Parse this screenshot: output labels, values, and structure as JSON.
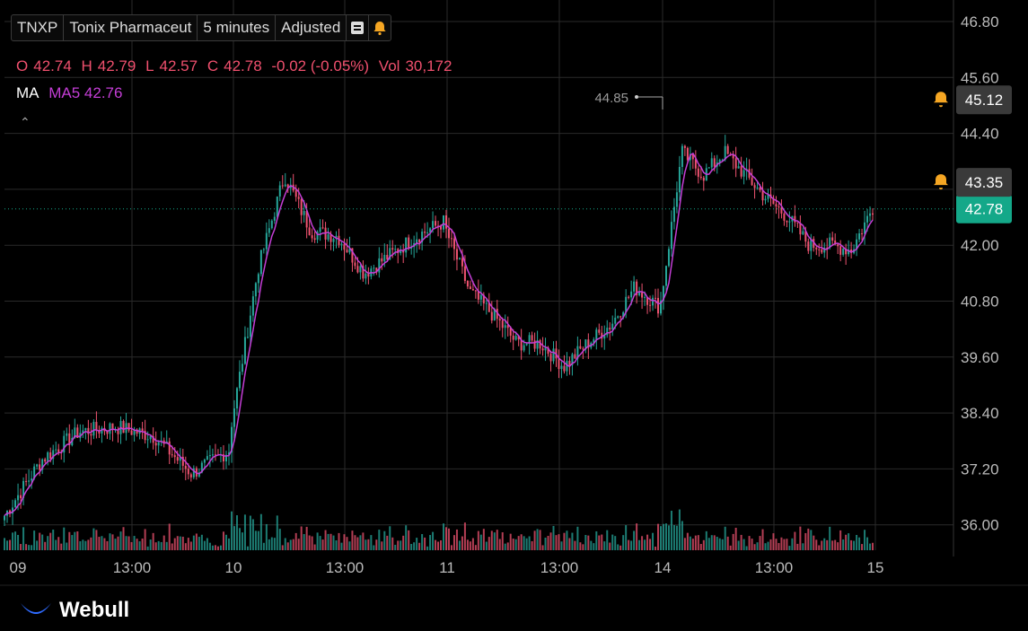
{
  "toolbar": {
    "symbol": "TNXP",
    "name": "Tonix Pharmaceut",
    "interval": "5 minutes",
    "adjust": "Adjusted",
    "doc_icon": "document-icon",
    "bell_icon": "bell-icon"
  },
  "ohlc": {
    "o_label": "O",
    "o": "42.74",
    "h_label": "H",
    "h": "42.79",
    "l_label": "L",
    "l": "42.57",
    "c_label": "C",
    "c": "42.78",
    "change": "-0.02 (-0.05%)",
    "vol_label": "Vol",
    "vol": "30,172"
  },
  "ma": {
    "title": "MA",
    "label": "MA5 42.76",
    "color": "#c43ed6"
  },
  "collapse_icon": "chevron-up-icon",
  "brand": {
    "name": "Webull"
  },
  "colors": {
    "up": "#26a69a",
    "down": "#ef5370",
    "ma": "#c43ed6",
    "alert": "#f5a623",
    "current": "#14a889",
    "grid": "#2a2a2a"
  },
  "chart_data": {
    "type": "candlestick",
    "symbol": "TNXP",
    "interval": "5 minutes",
    "y_ticks": [
      "46.80",
      "45.60",
      "44.40",
      "43.20",
      "42.00",
      "40.80",
      "39.60",
      "38.40",
      "37.20",
      "36.00"
    ],
    "ylim": [
      35.7,
      47.0
    ],
    "x_ticks": [
      "09",
      "13:00",
      "10",
      "13:00",
      "11",
      "13:00",
      "14",
      "13:00",
      "15"
    ],
    "current_price": "42.78",
    "alert_levels": [
      "45.12",
      "43.35"
    ],
    "high_annotation": "44.85",
    "ma5_last": "42.76",
    "series_keypoints": [
      {
        "day": "09",
        "close_points": [
          36.2,
          37.4,
          38.0,
          38.1,
          37.9,
          37.1,
          37.6
        ]
      },
      {
        "day": "10",
        "close_points": [
          38.2,
          41.5,
          43.5,
          42.3,
          42.2,
          41.4,
          41.8,
          42.2,
          42.5
        ]
      },
      {
        "day": "11",
        "close_points": [
          42.3,
          41.0,
          40.5,
          39.9,
          39.9,
          39.4,
          39.9,
          40.3,
          41.1,
          40.7
        ]
      },
      {
        "day": "14",
        "close_points": [
          40.8,
          44.0,
          43.5,
          44.0,
          43.5,
          43.0,
          42.6,
          42.0,
          42.0,
          41.9,
          42.8
        ]
      }
    ]
  }
}
